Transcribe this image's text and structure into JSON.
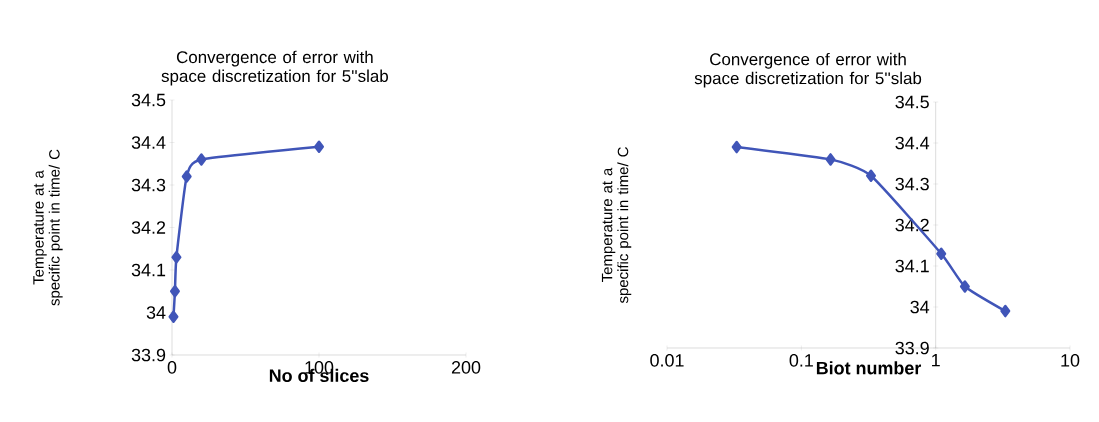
{
  "chart_data": [
    {
      "type": "line",
      "title": "Convergence of error with space discretization for 5''slab",
      "xlabel": "No of slices",
      "ylabel": "Temperature at a specific point in time/ C",
      "x": [
        1,
        2,
        3,
        10,
        20,
        100
      ],
      "series": [
        {
          "color": "#4055b8",
          "values": [
            33.99,
            34.05,
            34.13,
            34.32,
            34.36,
            34.39
          ]
        }
      ],
      "xlim": [
        0,
        200
      ],
      "ylim": [
        33.9,
        34.5
      ],
      "xticks": [
        0,
        100,
        200
      ],
      "yticks": [
        33.9,
        34,
        34.1,
        34.2,
        34.3,
        34.4,
        34.5
      ],
      "marker": "diamond",
      "grid": false
    },
    {
      "type": "line",
      "title": "Convergence of error with space discretization for 5''slab",
      "xlabel": "Biot number",
      "ylabel": "Temperature at a specific point in time/ C",
      "x": [
        3.3,
        1.65,
        1.1,
        0.33,
        0.165,
        0.033
      ],
      "series": [
        {
          "color": "#4055b8",
          "values": [
            33.99,
            34.05,
            34.13,
            34.32,
            34.36,
            34.39
          ]
        }
      ],
      "xlim": [
        0.01,
        10
      ],
      "ylim": [
        33.9,
        34.5
      ],
      "xticks": [
        0.01,
        0.1,
        1,
        10
      ],
      "yticks": [
        33.9,
        34,
        34.1,
        34.2,
        34.3,
        34.4,
        34.5
      ],
      "log": "x",
      "marker": "diamond",
      "grid": false
    }
  ]
}
